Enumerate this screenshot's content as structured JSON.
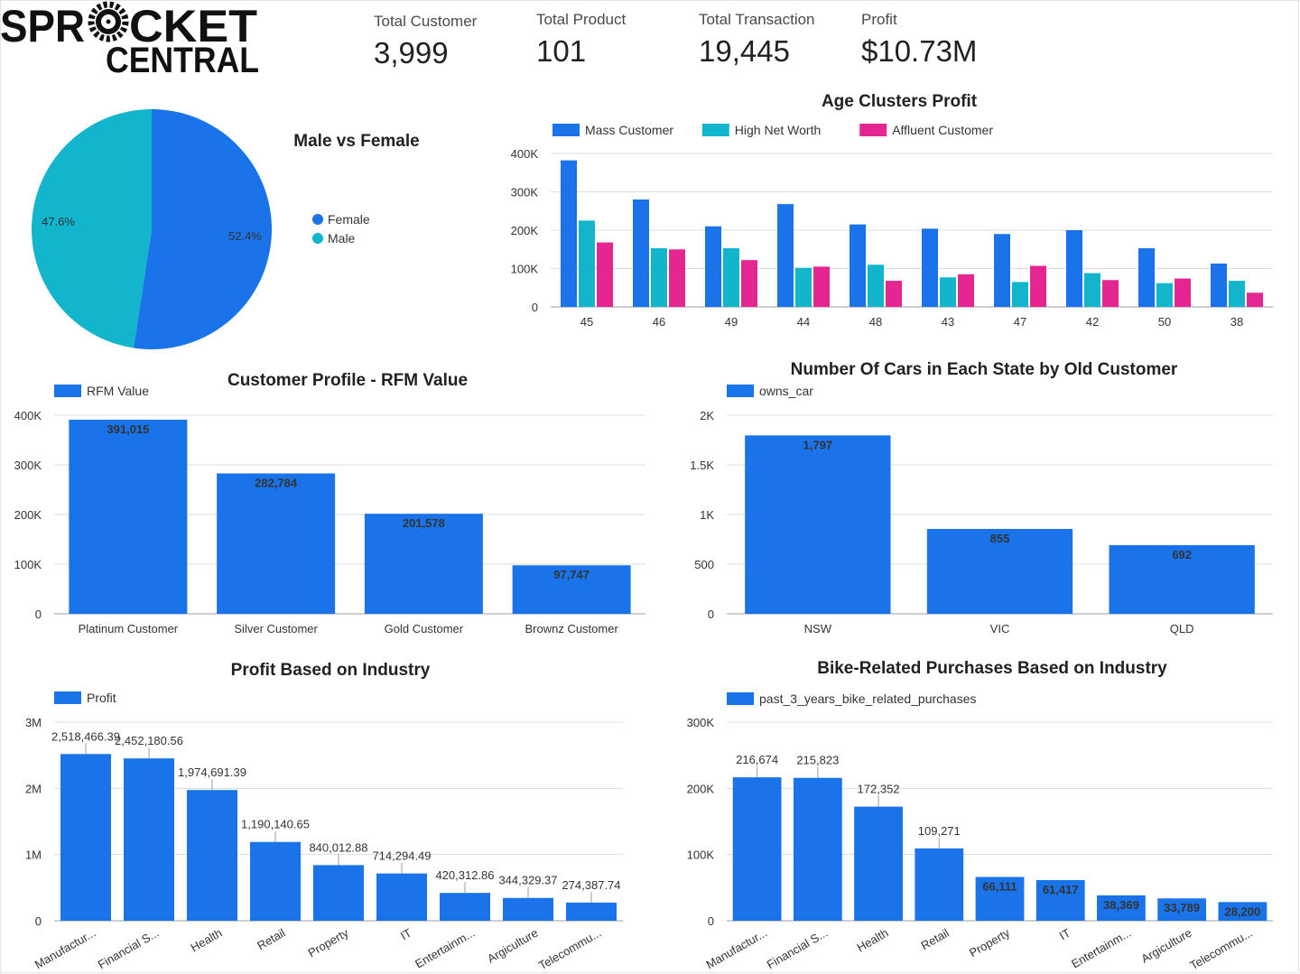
{
  "brand": {
    "word1": "SPR",
    "word1b": "CKET",
    "word2": "CENTRAL"
  },
  "kpis": [
    {
      "label": "Total Customer",
      "value": "3,999"
    },
    {
      "label": "Total Product",
      "value": "101"
    },
    {
      "label": "Total Transaction",
      "value": "19,445"
    },
    {
      "label": "Profit",
      "value": "$10.73M"
    }
  ],
  "colors": {
    "blue": "#1a73e8",
    "teal": "#12b5cb",
    "pink": "#e52592",
    "grid": "#dadce0"
  },
  "chart_data": [
    {
      "id": "gender",
      "type": "pie",
      "title": "Male vs Female",
      "slices": [
        {
          "label": "Female",
          "value": 52.4,
          "text": "52.4%",
          "color": "#1a73e8"
        },
        {
          "label": "Male",
          "value": 47.6,
          "text": "47.6%",
          "color": "#12b5cb"
        }
      ],
      "legend_position": "right"
    },
    {
      "id": "age",
      "type": "bar",
      "title": "Age Clusters Profit",
      "categories": [
        "45",
        "46",
        "49",
        "44",
        "48",
        "43",
        "47",
        "42",
        "50",
        "38"
      ],
      "series": [
        {
          "name": "Mass Customer",
          "color": "#1a73e8",
          "values": [
            382000,
            280000,
            210000,
            268000,
            215000,
            204000,
            190000,
            200000,
            153000,
            113000
          ]
        },
        {
          "name": "High Net Worth",
          "color": "#12b5cb",
          "values": [
            225000,
            153000,
            153000,
            102000,
            110000,
            77000,
            65000,
            88000,
            62000,
            68000
          ]
        },
        {
          "name": "Affluent Customer",
          "color": "#e52592",
          "values": [
            168000,
            150000,
            122000,
            105000,
            68000,
            85000,
            107000,
            70000,
            74000,
            37000
          ]
        }
      ],
      "ylim": [
        0,
        400000
      ],
      "yticks": [
        "0",
        "100K",
        "200K",
        "300K",
        "400K"
      ],
      "grid": true,
      "legend_position": "top"
    },
    {
      "id": "rfm",
      "type": "bar",
      "title": "Customer Profile - RFM Value",
      "categories": [
        "Platinum Customer",
        "Silver Customer",
        "Gold Customer",
        "Brownz Customer"
      ],
      "series": [
        {
          "name": "RFM Value",
          "values": [
            391015,
            282784,
            201578,
            97747
          ]
        }
      ],
      "data_labels": [
        "391,015",
        "282,784",
        "201,578",
        "97,747"
      ],
      "ylim": [
        0,
        400000
      ],
      "yticks": [
        "0",
        "100K",
        "200K",
        "300K",
        "400K"
      ],
      "grid": true,
      "legend_position": "top-left"
    },
    {
      "id": "cars",
      "type": "bar",
      "title": "Number Of Cars in Each State by Old Customer",
      "categories": [
        "NSW",
        "VIC",
        "QLD"
      ],
      "series": [
        {
          "name": "owns_car",
          "values": [
            1797,
            855,
            692
          ]
        }
      ],
      "data_labels": [
        "1,797",
        "855",
        "692"
      ],
      "ylim": [
        0,
        2000
      ],
      "yticks": [
        "0",
        "500",
        "1K",
        "1.5K",
        "2K"
      ],
      "grid": true,
      "legend_position": "top-left"
    },
    {
      "id": "industry_profit",
      "type": "bar",
      "title": "Profit Based on Industry",
      "categories": [
        "Manufactur...",
        "Financial S...",
        "Health",
        "Retail",
        "Property",
        "IT",
        "Entertainm...",
        "Argiculture",
        "Telecommu..."
      ],
      "series": [
        {
          "name": "Profit",
          "values": [
            2518466.39,
            2452180.56,
            1974691.39,
            1190140.65,
            840012.88,
            714294.49,
            420312.86,
            344329.37,
            274387.74
          ]
        }
      ],
      "data_labels": [
        "2,518,466.39",
        "2,452,180.56",
        "1,974,691.39",
        "1,190,140.65",
        "840,012.88",
        "714,294.49",
        "420,312.86",
        "344,329.37",
        "274,387.74"
      ],
      "ylim": [
        0,
        3000000
      ],
      "yticks": [
        "0",
        "1M",
        "2M",
        "3M"
      ],
      "grid": true,
      "legend_position": "top-left"
    },
    {
      "id": "industry_bike",
      "type": "bar",
      "title": "Bike-Related Purchases Based on Industry",
      "categories": [
        "Manufactur...",
        "Financial S...",
        "Health",
        "Retail",
        "Property",
        "IT",
        "Entertainm...",
        "Argiculture",
        "Telecommu..."
      ],
      "series": [
        {
          "name": "past_3_years_bike_related_purchases",
          "values": [
            216674,
            215823,
            172352,
            109271,
            66111,
            61417,
            38369,
            33789,
            28200
          ]
        }
      ],
      "data_labels": [
        "216,674",
        "215,823",
        "172,352",
        "109,271",
        "66,111",
        "61,417",
        "38,369",
        "33,789",
        "28,200"
      ],
      "ylim": [
        0,
        300000
      ],
      "yticks": [
        "0",
        "100K",
        "200K",
        "300K"
      ],
      "grid": true,
      "legend_position": "top-left"
    }
  ]
}
